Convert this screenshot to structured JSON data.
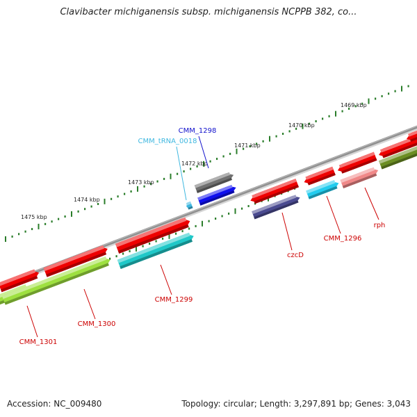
{
  "title": "Clavibacter michiganensis subsp. michiganensis NCPPB 382, co...",
  "footer": {
    "accession": "Accession: NC_009480",
    "topology": "Topology: circular; Length: 3,297,891 bp; Genes: 3,043"
  },
  "colors": {
    "backbone": "#909090",
    "cds": "#ee0000",
    "trna": "#3fb8e0",
    "label_red": "#cc0000",
    "label_blue": "#1010cc",
    "label_cyan": "#3fb8e0",
    "ruler_major": "#2a7d2a",
    "ruler_minor": "#2a7d2a",
    "ruler_text": "#222222"
  },
  "ruler": {
    "labels": [
      "1469 kbp",
      "1470 kbp",
      "1471 kbp",
      "1472 kbp",
      "1473 kbp",
      "1474 kbp",
      "1475 kbp"
    ]
  },
  "features": [
    {
      "id": "cds-a1",
      "kind": "cds",
      "color": "#ee0000"
    },
    {
      "id": "cds-a2",
      "kind": "cds",
      "color": "#ee0000"
    },
    {
      "id": "cds-a3",
      "kind": "cds",
      "color": "#ee0000"
    },
    {
      "id": "cds-a4",
      "kind": "cds",
      "color": "#ee0000"
    },
    {
      "id": "cds-a5",
      "kind": "cds",
      "color": "#ee0000"
    },
    {
      "id": "cds-a6",
      "kind": "cds",
      "color": "#ee0000"
    },
    {
      "id": "cds-a7",
      "kind": "cds",
      "color": "#ee0000"
    },
    {
      "id": "cds-a8",
      "kind": "cds",
      "color": "#ee0000"
    },
    {
      "id": "cmm1301",
      "kind": "cds",
      "color": "#9ee040"
    },
    {
      "id": "cmm1300",
      "kind": "cds",
      "color": "#9ee040"
    },
    {
      "id": "cmm1299",
      "kind": "cds",
      "color": "#20c8c8"
    },
    {
      "id": "czcD",
      "kind": "cds",
      "color": "#4a4a90"
    },
    {
      "id": "cmm1296",
      "kind": "cds",
      "color": "#22ccee"
    },
    {
      "id": "rph",
      "kind": "cds",
      "color": "#f08888"
    },
    {
      "id": "olive",
      "kind": "cds",
      "color": "#6b8e23"
    },
    {
      "id": "cmm1298",
      "kind": "cds",
      "color": "#1010ee"
    },
    {
      "id": "grey",
      "kind": "cds",
      "color": "#707070"
    },
    {
      "id": "trna0018",
      "kind": "trna",
      "color": "#3fb8e0"
    }
  ],
  "labels": [
    {
      "id": "cmm1298",
      "text": "CMM_1298",
      "color": "#1010cc"
    },
    {
      "id": "trna0018",
      "text": "CMM_tRNA_0018",
      "color": "#3fb8e0"
    },
    {
      "id": "czcD",
      "text": "czcD",
      "color": "#cc0000"
    },
    {
      "id": "cmm1296",
      "text": "CMM_1296",
      "color": "#cc0000"
    },
    {
      "id": "rph",
      "text": "rph",
      "color": "#cc0000"
    },
    {
      "id": "cmm1299",
      "text": "CMM_1299",
      "color": "#cc0000"
    },
    {
      "id": "cmm1300",
      "text": "CMM_1300",
      "color": "#cc0000"
    },
    {
      "id": "cmm1301",
      "text": "CMM_1301",
      "color": "#cc0000"
    }
  ]
}
